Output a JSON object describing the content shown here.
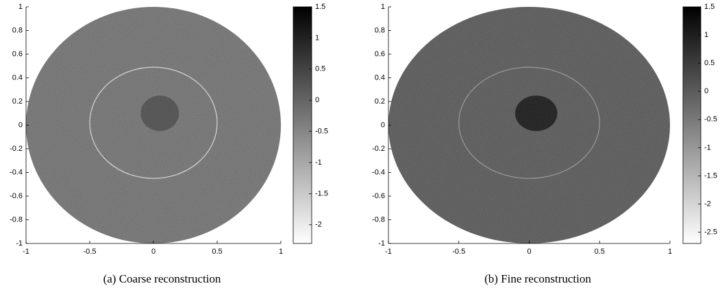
{
  "chart_data": [
    {
      "type": "image",
      "caption": "(a) Coarse reconstruction",
      "xlim": [
        -1,
        1
      ],
      "ylim": [
        -1,
        1
      ],
      "xticks": [
        -1,
        -0.5,
        0,
        0.5,
        1
      ],
      "yticks": [
        -1,
        -0.8,
        -0.6,
        -0.4,
        -0.2,
        0,
        0.2,
        0.4,
        0.6,
        0.8,
        1
      ],
      "clim": [
        -2.3,
        1.5
      ],
      "cticks": [
        -2,
        -1.5,
        -1,
        -0.5,
        0,
        0.5,
        1,
        1.5
      ]
    },
    {
      "type": "image",
      "caption": "(b) Fine reconstruction",
      "xlim": [
        -1,
        1
      ],
      "ylim": [
        -1,
        1
      ],
      "xticks": [
        -1,
        -0.5,
        0,
        0.5,
        1
      ],
      "yticks": [
        -1,
        -0.8,
        -0.6,
        -0.4,
        -0.2,
        0,
        0.2,
        0.4,
        0.6,
        0.8,
        1
      ],
      "clim": [
        -2.7,
        1.5
      ],
      "cticks": [
        -2.5,
        -2,
        -1.5,
        -1,
        -0.5,
        0,
        0.5,
        1,
        1.5
      ]
    }
  ]
}
